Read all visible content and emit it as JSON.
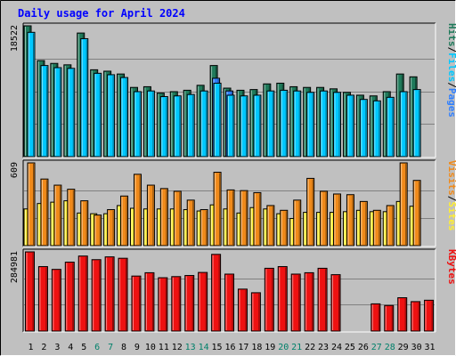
{
  "title": "Daily usage for April 2024",
  "colors": {
    "background": "#c0c0c0",
    "title": "#0000ff",
    "hits": "#1f7a5a",
    "files": "#00c8ff",
    "pages": "#2f7fff",
    "visits": "#f08a1a",
    "sites": "#ffee33",
    "kbytes": "#ee1111",
    "weekend_label": "#00806a",
    "weekday_label": "#000000"
  },
  "chart_data": [
    {
      "type": "bar",
      "panel": "hits-files-pages",
      "ylabel_parts": [
        "Pages",
        "Files",
        "Hits"
      ],
      "max_label": "18522",
      "ylim": [
        0,
        18522
      ],
      "categories": [
        "1",
        "2",
        "3",
        "4",
        "5",
        "6",
        "7",
        "8",
        "9",
        "10",
        "11",
        "12",
        "13",
        "14",
        "15",
        "16",
        "17",
        "18",
        "19",
        "20",
        "21",
        "22",
        "23",
        "24",
        "25",
        "26",
        "27",
        "28",
        "29",
        "30",
        "31"
      ],
      "weekend_days": [
        "6",
        "7",
        "13",
        "14",
        "20",
        "21",
        "27",
        "28"
      ],
      "series": [
        {
          "name": "Hits",
          "values": [
            18522,
            13600,
            13200,
            13000,
            17500,
            12300,
            12100,
            11700,
            9800,
            9900,
            9000,
            9200,
            9400,
            10100,
            12900,
            9700,
            9400,
            9500,
            10300,
            10400,
            9900,
            9800,
            9800,
            9600,
            9100,
            8700,
            8600,
            9200,
            11700,
            11300,
            0
          ]
        },
        {
          "name": "Files",
          "values": [
            17600,
            12900,
            12600,
            12500,
            16700,
            11800,
            11600,
            11200,
            9200,
            9300,
            8500,
            8600,
            8800,
            9300,
            10400,
            8700,
            8600,
            8700,
            9300,
            9400,
            9300,
            9100,
            9300,
            9100,
            8700,
            8100,
            7900,
            8400,
            9200,
            9500,
            0
          ]
        },
        {
          "name": "Pages",
          "values": [
            0,
            0,
            0,
            0,
            0,
            0,
            0,
            0,
            0,
            0,
            0,
            0,
            0,
            0,
            11100,
            9300,
            0,
            0,
            0,
            0,
            0,
            0,
            0,
            0,
            0,
            0,
            0,
            0,
            0,
            0,
            0
          ]
        }
      ]
    },
    {
      "type": "bar",
      "panel": "visits-sites",
      "ylabel_parts": [
        "Sites",
        "Visits"
      ],
      "max_label": "609",
      "ylim": [
        0,
        609
      ],
      "series": [
        {
          "name": "Visits",
          "values": [
            609,
            490,
            445,
            415,
            330,
            225,
            265,
            365,
            525,
            445,
            420,
            400,
            335,
            265,
            540,
            410,
            405,
            390,
            295,
            260,
            335,
            495,
            400,
            380,
            375,
            325,
            260,
            295,
            609,
            480,
            0
          ]
        },
        {
          "name": "Sites",
          "values": [
            270,
            310,
            320,
            330,
            240,
            235,
            235,
            295,
            275,
            270,
            270,
            270,
            265,
            255,
            300,
            270,
            240,
            280,
            270,
            235,
            200,
            245,
            245,
            245,
            250,
            260,
            250,
            250,
            325,
            290,
            0
          ]
        }
      ]
    },
    {
      "type": "bar",
      "panel": "kbytes",
      "ylabel_parts": [
        "KBytes"
      ],
      "max_label": "284981",
      "ylim": [
        0,
        284981
      ],
      "series": [
        {
          "name": "KBytes",
          "values": [
            284981,
            232000,
            222000,
            248000,
            270000,
            257000,
            267000,
            262000,
            198000,
            210000,
            192000,
            196000,
            200000,
            211000,
            276000,
            205000,
            151000,
            138000,
            226000,
            232000,
            205000,
            210000,
            226000,
            203000,
            0,
            0,
            98000,
            92000,
            120000,
            106000,
            111000
          ]
        }
      ]
    }
  ]
}
